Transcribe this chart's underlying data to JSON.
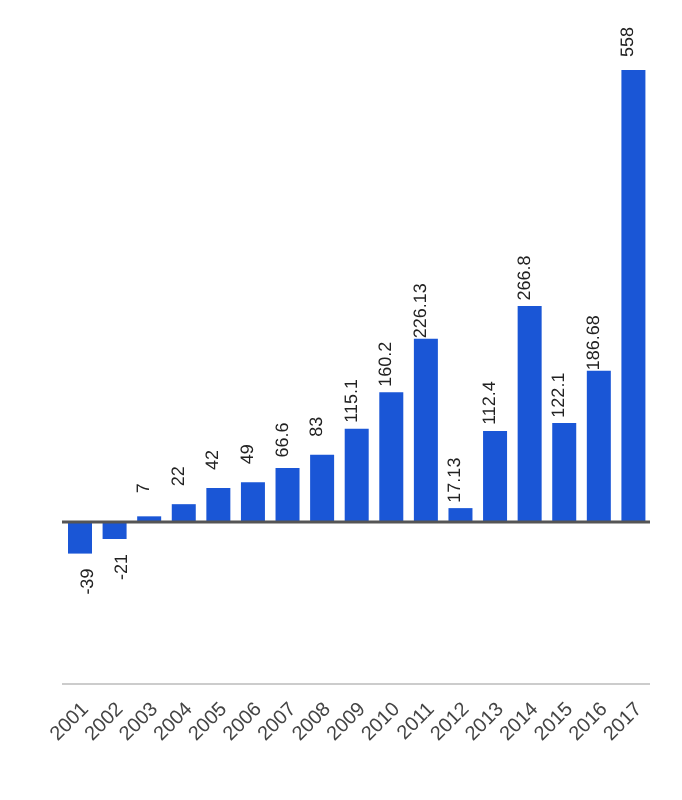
{
  "chart_data": {
    "type": "bar",
    "categories": [
      "2001",
      "2002",
      "2003",
      "2004",
      "2005",
      "2006",
      "2007",
      "2008",
      "2009",
      "2010",
      "2011",
      "2012",
      "2013",
      "2014",
      "2015",
      "2016",
      "2017"
    ],
    "values": [
      -39,
      -21,
      7,
      22,
      42,
      49,
      66.6,
      83.0,
      115.1,
      160.2,
      226.13,
      17.13,
      112.4,
      266.8,
      122.1,
      186.68,
      558
    ],
    "color": "#1a56d6",
    "ref_lines": [
      {
        "axis": "y",
        "value": 0,
        "color": "#555555"
      }
    ],
    "data_labels": true,
    "tick_labels": "x"
  }
}
